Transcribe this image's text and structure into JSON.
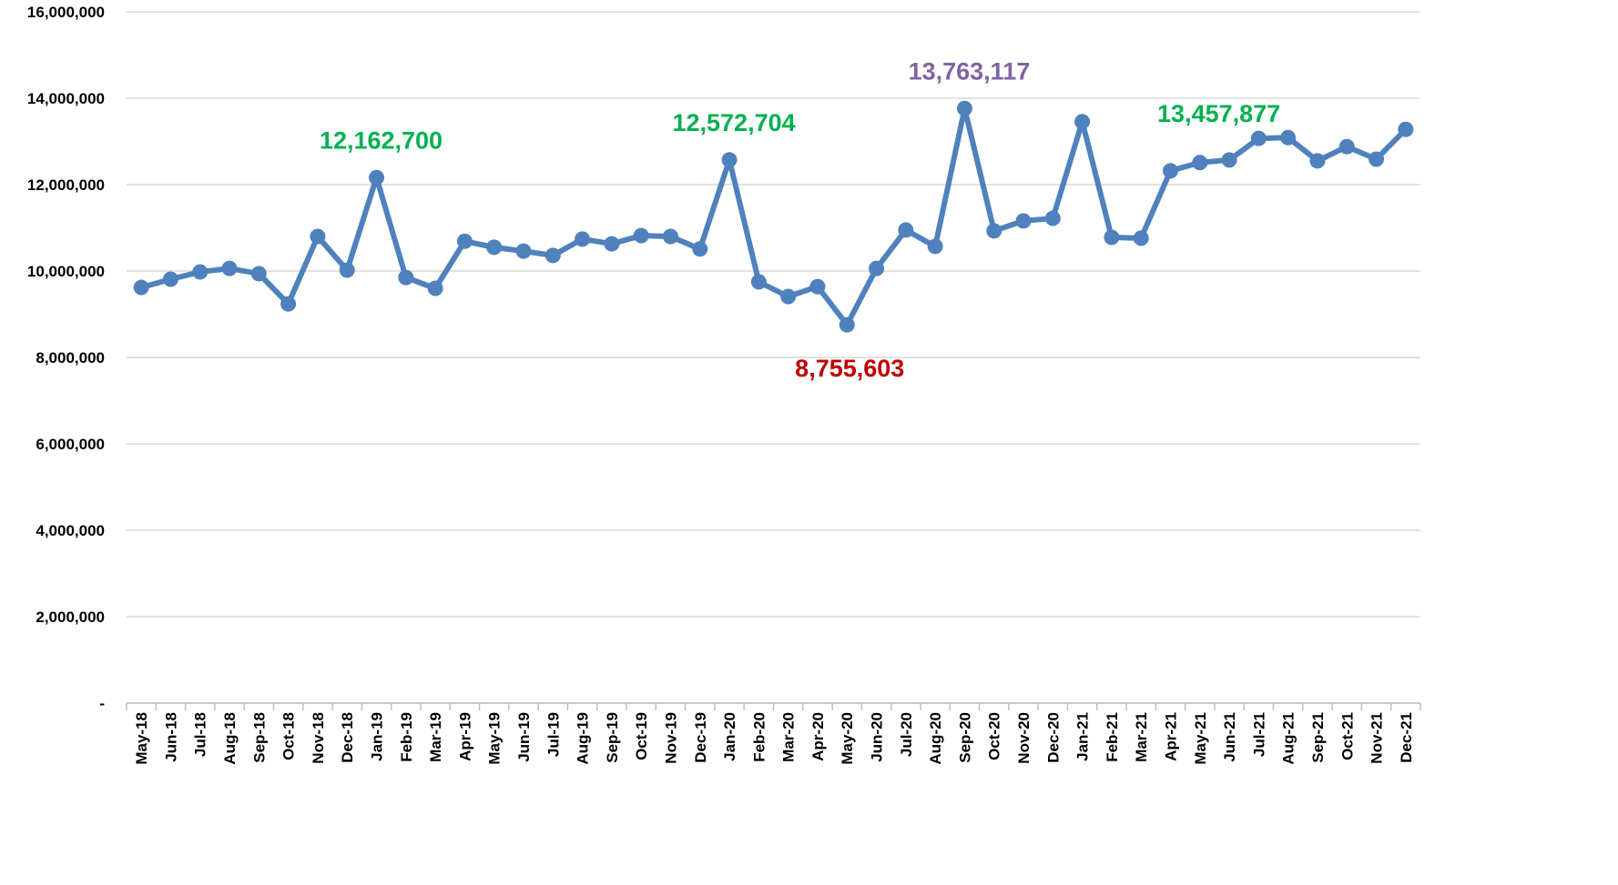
{
  "chart_data": {
    "type": "line",
    "categories": [
      "May-18",
      "Jun-18",
      "Jul-18",
      "Aug-18",
      "Sep-18",
      "Oct-18",
      "Nov-18",
      "Dec-18",
      "Jan-19",
      "Feb-19",
      "Mar-19",
      "Apr-19",
      "May-19",
      "Jun-19",
      "Jul-19",
      "Aug-19",
      "Sep-19",
      "Oct-19",
      "Nov-19",
      "Dec-19",
      "Jan-20",
      "Feb-20",
      "Mar-20",
      "Apr-20",
      "May-20",
      "Jun-20",
      "Jul-20",
      "Aug-20",
      "Sep-20",
      "Oct-20",
      "Nov-20",
      "Dec-20",
      "Jan-21",
      "Feb-21",
      "Mar-21",
      "Apr-21",
      "May-21",
      "Jun-21",
      "Jul-21",
      "Aug-21",
      "Sep-21",
      "Oct-21",
      "Nov-21",
      "Dec-21"
    ],
    "values": [
      9620000,
      9810000,
      9980000,
      10060000,
      9940000,
      9240000,
      10800000,
      10020000,
      12162700,
      9850000,
      9600000,
      10690000,
      10550000,
      10460000,
      10360000,
      10740000,
      10630000,
      10820000,
      10800000,
      10510000,
      12572704,
      9750000,
      9410000,
      9640000,
      8755603,
      10060000,
      10950000,
      10570000,
      13763117,
      10930000,
      11160000,
      11220000,
      13457877,
      10780000,
      10760000,
      12320000,
      12510000,
      12570000,
      13070000,
      13090000,
      12550000,
      12880000,
      12590000,
      13280000
    ],
    "value_labels": [
      null,
      null,
      null,
      null,
      null,
      null,
      null,
      null,
      "12,162,700",
      null,
      null,
      null,
      null,
      null,
      null,
      null,
      null,
      null,
      null,
      null,
      "12,572,704",
      null,
      null,
      null,
      "8,755,603",
      null,
      null,
      null,
      "13,763,117",
      null,
      null,
      null,
      "13,457,877",
      null,
      null,
      null,
      null,
      null,
      null,
      null,
      null,
      null,
      null,
      null
    ],
    "value_label_colors": [
      null,
      null,
      null,
      null,
      null,
      null,
      null,
      null,
      "#00b050",
      null,
      null,
      null,
      null,
      null,
      null,
      null,
      null,
      null,
      null,
      null,
      "#00b050",
      null,
      null,
      null,
      "#c00000",
      null,
      null,
      null,
      "#8064a2",
      null,
      null,
      null,
      "#00b050",
      null,
      null,
      null,
      null,
      null,
      null,
      null,
      null,
      null,
      null,
      null
    ],
    "color": "#4f81bd",
    "ylim": [
      0,
      16000000
    ],
    "yticks": [
      {
        "value": 0,
        "label": "-"
      },
      {
        "value": 2000000,
        "label": "2,000,000"
      },
      {
        "value": 4000000,
        "label": "4,000,000"
      },
      {
        "value": 6000000,
        "label": "6,000,000"
      },
      {
        "value": 8000000,
        "label": "8,000,000"
      },
      {
        "value": 10000000,
        "label": "10,000,000"
      },
      {
        "value": 12000000,
        "label": "12,000,000"
      },
      {
        "value": 14000000,
        "label": "14,000,000"
      },
      {
        "value": 16000000,
        "label": "16,000,000"
      }
    ],
    "grid": true
  }
}
